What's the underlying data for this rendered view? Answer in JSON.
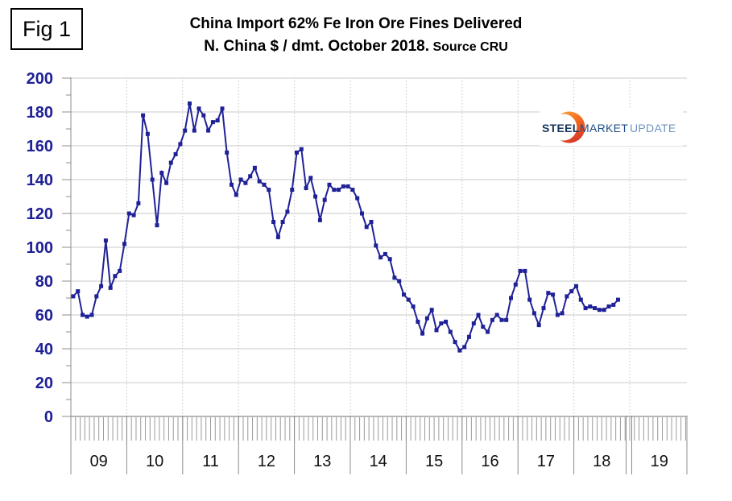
{
  "figure": {
    "label": "Fig 1"
  },
  "title": {
    "line1": "China Import 62% Fe Iron Ore Fines Delivered",
    "line2_main": "N. China $ / dmt. October 2018.",
    "line2_source": " Source CRU"
  },
  "logo": {
    "word1": "STEEL",
    "word2": "MARKET",
    "word3": "UPDATE",
    "word1_color": "#17365d",
    "word2_color": "#1d4e89",
    "word3_color": "#6e94bf",
    "crescent_colors": [
      "#f8a13b",
      "#f26822",
      "#d93b27"
    ]
  },
  "colors": {
    "series": "#1f2196",
    "grid": "#c9c9c9",
    "dotted_grid": "#c4c4c4",
    "axis": "#8c8c8c",
    "tick": "#9a9a9a",
    "y_label": "#1f2196",
    "year_label": "#111111"
  },
  "chart_data": {
    "type": "line",
    "title": "China Import 62% Fe Iron Ore Fines Delivered N. China $ / dmt. October 2018. Source CRU",
    "xlabel": "",
    "ylabel": "",
    "ylim": [
      0,
      200
    ],
    "ytick_step": 20,
    "ytick_labels": [
      "200",
      "180",
      "160",
      "140",
      "120",
      "100",
      "80",
      "60",
      "40",
      "20",
      "0"
    ],
    "x_year_labels": [
      "09",
      "10",
      "11",
      "12",
      "13",
      "14",
      "15",
      "16",
      "17",
      "18",
      "19"
    ],
    "grid": true,
    "legend": false,
    "marker": "square",
    "series": [
      {
        "name": "China import 62% Fe iron ore fines delivered N. China, $/dmt",
        "frequency": "monthly",
        "start": "2009-01",
        "end": "2018-10",
        "values": [
          71,
          74,
          60,
          59,
          60,
          71,
          77,
          104,
          76,
          83,
          86,
          102,
          120,
          119,
          126,
          178,
          167,
          140,
          113,
          144,
          138,
          150,
          155,
          161,
          169,
          185,
          169,
          182,
          178,
          169,
          174,
          175,
          182,
          156,
          137,
          131,
          140,
          138,
          142,
          147,
          139,
          137,
          134,
          115,
          106,
          115,
          121,
          134,
          156,
          158,
          135,
          141,
          130,
          116,
          128,
          137,
          134,
          134,
          136,
          136,
          134,
          129,
          120,
          112,
          115,
          101,
          94,
          96,
          93,
          82,
          80,
          72,
          69,
          65,
          56,
          49,
          58,
          63,
          51,
          55,
          56,
          50,
          44,
          39,
          41,
          47,
          55,
          60,
          53,
          50,
          57,
          60,
          57,
          57,
          70,
          78,
          86,
          86,
          69,
          61,
          54,
          64,
          73,
          72,
          60,
          61,
          71,
          74,
          77,
          69,
          64,
          65,
          64,
          63,
          63,
          65,
          66,
          69
        ]
      }
    ]
  }
}
